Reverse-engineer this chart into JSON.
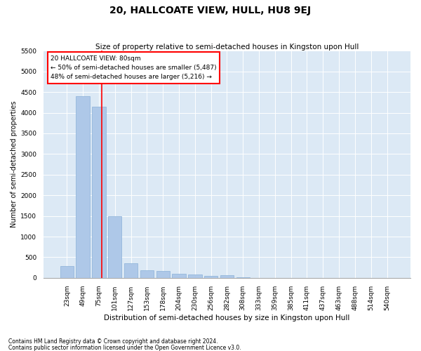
{
  "title": "20, HALLCOATE VIEW, HULL, HU8 9EJ",
  "subtitle": "Size of property relative to semi-detached houses in Kingston upon Hull",
  "xlabel": "Distribution of semi-detached houses by size in Kingston upon Hull",
  "ylabel": "Number of semi-detached properties",
  "footnote1": "Contains HM Land Registry data © Crown copyright and database right 2024.",
  "footnote2": "Contains public sector information licensed under the Open Government Licence v3.0.",
  "bar_labels": [
    "23sqm",
    "49sqm",
    "75sqm",
    "101sqm",
    "127sqm",
    "153sqm",
    "178sqm",
    "204sqm",
    "230sqm",
    "256sqm",
    "282sqm",
    "308sqm",
    "333sqm",
    "359sqm",
    "385sqm",
    "411sqm",
    "437sqm",
    "463sqm",
    "488sqm",
    "514sqm",
    "540sqm"
  ],
  "bar_values": [
    290,
    4400,
    4150,
    1500,
    350,
    190,
    160,
    100,
    75,
    50,
    60,
    20,
    0,
    0,
    0,
    0,
    0,
    0,
    0,
    0,
    0
  ],
  "bar_color": "#aec8e8",
  "bar_edge_color": "#8ab0d8",
  "annotation_title": "20 HALLCOATE VIEW: 80sqm",
  "annotation_line1": "← 50% of semi-detached houses are smaller (5,487)",
  "annotation_line2": "48% of semi-detached houses are larger (5,216) →",
  "annotation_box_facecolor": "white",
  "annotation_box_edgecolor": "red",
  "vline_color": "red",
  "vline_x": 2.19,
  "background_color": "#dce9f5",
  "ylim": [
    0,
    5500
  ],
  "yticks": [
    0,
    500,
    1000,
    1500,
    2000,
    2500,
    3000,
    3500,
    4000,
    4500,
    5000,
    5500
  ],
  "title_fontsize": 10,
  "subtitle_fontsize": 7.5,
  "xlabel_fontsize": 7.5,
  "ylabel_fontsize": 7,
  "tick_fontsize": 6.5,
  "footnote_fontsize": 5.5,
  "bar_width": 0.85
}
